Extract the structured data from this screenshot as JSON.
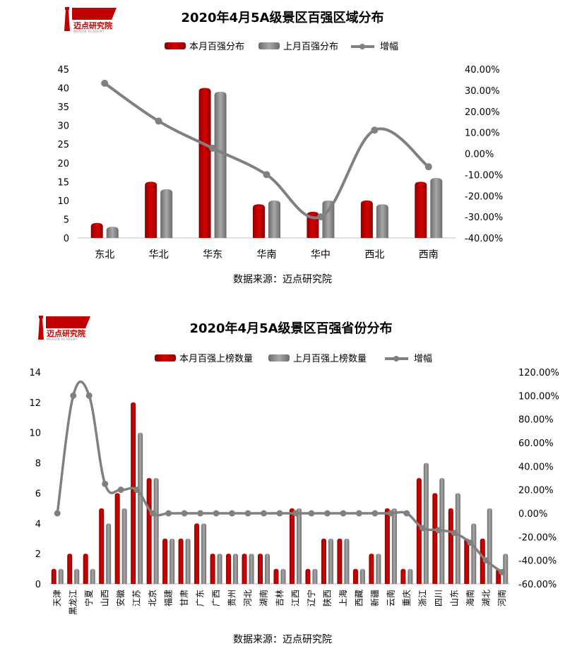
{
  "logo": {
    "name": "迈点研究院",
    "sub": "MEADIN ACADEMY"
  },
  "colors": {
    "current": "#c00000",
    "previous": "#808080",
    "growth": "#808080"
  },
  "chart_data": [
    {
      "type": "bar",
      "title": "2020年4月5A级景区百强区域分布",
      "source": "数据来源：迈点研究院",
      "legend_placement": "top",
      "categories": [
        "东北",
        "华北",
        "华东",
        "华南",
        "华中",
        "西北",
        "西南"
      ],
      "series": [
        {
          "name": "本月百强分布",
          "type": "bar",
          "axis": "left",
          "values": [
            4,
            15,
            40,
            9,
            7,
            10,
            15
          ]
        },
        {
          "name": "上月百强分布",
          "type": "bar",
          "axis": "left",
          "values": [
            3,
            13,
            39,
            10,
            10,
            9,
            16
          ]
        },
        {
          "name": "增幅",
          "type": "line",
          "axis": "right",
          "values": [
            0.3333,
            0.1538,
            0.0256,
            -0.1,
            -0.3,
            0.1111,
            -0.0625
          ]
        }
      ],
      "ylim": [
        0,
        45
      ],
      "yticks": [
        "0",
        "5",
        "10",
        "15",
        "20",
        "25",
        "30",
        "35",
        "40",
        "45"
      ],
      "y2lim": [
        -0.4,
        0.4
      ],
      "y2ticks": [
        "-40.00%",
        "-30.00%",
        "-20.00%",
        "-10.00%",
        "0.00%",
        "10.00%",
        "20.00%",
        "30.00%",
        "40.00%"
      ]
    },
    {
      "type": "bar",
      "title": "2020年4月5A级景区百强省份分布",
      "source": "数据来源：迈点研究院",
      "legend_placement": "top",
      "categories": [
        "天津",
        "黑龙江",
        "宁夏",
        "山西",
        "安徽",
        "江苏",
        "北京",
        "福建",
        "甘肃",
        "广东",
        "广西",
        "贵州",
        "河北",
        "湖南",
        "吉林",
        "江西",
        "辽宁",
        "陕西",
        "上海",
        "西藏",
        "新疆",
        "云南",
        "重庆",
        "浙江",
        "四川",
        "山东",
        "海南",
        "湖北",
        "河南"
      ],
      "series": [
        {
          "name": "本月百强上榜数量",
          "type": "bar",
          "axis": "left",
          "values": [
            1,
            2,
            2,
            5,
            6,
            12,
            7,
            3,
            3,
            4,
            2,
            2,
            2,
            2,
            1,
            5,
            1,
            3,
            3,
            1,
            2,
            5,
            1,
            7,
            6,
            5,
            3,
            3,
            1
          ]
        },
        {
          "name": "上月百强上榜数量",
          "type": "bar",
          "axis": "left",
          "values": [
            1,
            1,
            1,
            4,
            5,
            10,
            7,
            3,
            3,
            4,
            2,
            2,
            2,
            2,
            1,
            5,
            1,
            3,
            3,
            1,
            2,
            5,
            1,
            8,
            7,
            6,
            4,
            5,
            2
          ]
        },
        {
          "name": "增幅",
          "type": "line",
          "axis": "right",
          "values": [
            0,
            1.0,
            1.0,
            0.25,
            0.2,
            0.2,
            0,
            0,
            0,
            0,
            0,
            0,
            0,
            0,
            0,
            0,
            0,
            0,
            0,
            0,
            0,
            0,
            0,
            -0.125,
            -0.1429,
            -0.1667,
            -0.25,
            -0.4,
            -0.5
          ]
        }
      ],
      "ylim": [
        0,
        14
      ],
      "yticks": [
        "0",
        "2",
        "4",
        "6",
        "8",
        "10",
        "12",
        "14"
      ],
      "y2lim": [
        -0.6,
        1.2
      ],
      "y2ticks": [
        "-60.00%",
        "-40.00%",
        "-20.00%",
        "0.00%",
        "20.00%",
        "40.00%",
        "60.00%",
        "80.00%",
        "100.00%",
        "120.00%"
      ]
    }
  ]
}
